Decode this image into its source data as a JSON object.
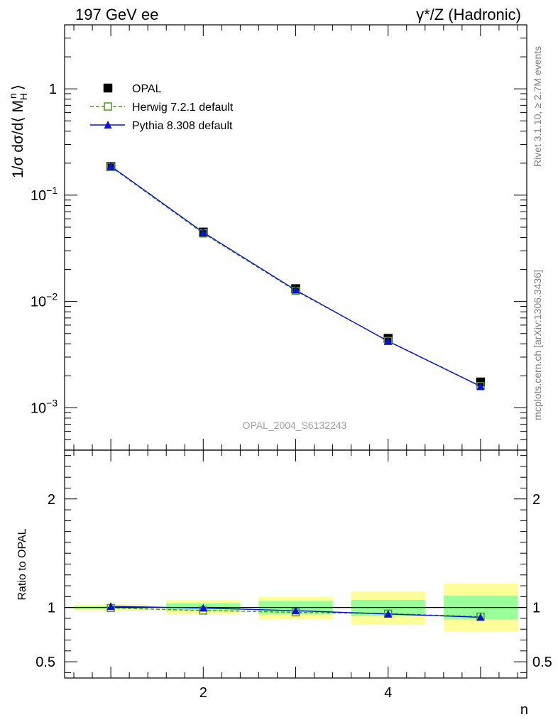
{
  "header": {
    "left_title": "197 GeV ee",
    "right_title": "γ*/Z (Hadronic)"
  },
  "side_labels": {
    "rivet": "Rivet 3.1.10, ≥ 2.7M events",
    "mcplots": "mcplots.cern.ch [arXiv:1306.3436]"
  },
  "watermark": "OPAL_2004_S6132243",
  "colors": {
    "data": "#000000",
    "herwig": "#4a9a1a",
    "pythia": "#0a10d8",
    "band_inner": "#99ff99",
    "band_outer": "#ffff99"
  },
  "chart_data": [
    {
      "type": "scatter",
      "panel": "main",
      "ylabel": "1/σ dσ/d⟨ M",
      "ylabel_sub": "H",
      "ylabel_sup": "n",
      "ylabel_close": "⟩",
      "yscale": "log",
      "xlim": [
        0.5,
        5.5
      ],
      "ylim": [
        0.0004,
        4.0
      ],
      "y_ticks": [
        {
          "value": 0.001,
          "base": "10",
          "exp": "−3"
        },
        {
          "value": 0.01,
          "base": "10",
          "exp": "−2"
        },
        {
          "value": 0.1,
          "base": "10",
          "exp": "−1"
        },
        {
          "value": 1,
          "base": "1",
          "exp": ""
        }
      ],
      "x": [
        1,
        2,
        3,
        4,
        5
      ],
      "series": [
        {
          "name": "OPAL",
          "values": [
            0.186,
            0.045,
            0.0132,
            0.0045,
            0.00175
          ],
          "marker": "square",
          "color_key": "data"
        },
        {
          "name": "Herwig 7.2.1 default",
          "values": [
            0.185,
            0.0437,
            0.0126,
            0.00425,
            0.0016
          ],
          "marker": "open-square",
          "line": "dashed",
          "color_key": "herwig"
        },
        {
          "name": "Pythia 8.308 default",
          "values": [
            0.188,
            0.0447,
            0.0128,
            0.00423,
            0.00159
          ],
          "marker": "triangle",
          "line": "solid",
          "color_key": "pythia"
        }
      ],
      "legend": "top-left"
    },
    {
      "type": "line",
      "panel": "ratio",
      "ylabel": "Ratio to OPAL",
      "xlabel": "n",
      "xlim": [
        0.5,
        5.5
      ],
      "ylim": [
        0.35,
        2.45
      ],
      "x_ticks": [
        2,
        4
      ],
      "y_ticks": [
        0.5,
        1,
        2
      ],
      "x": [
        1,
        2,
        3,
        4,
        5
      ],
      "bands": [
        {
          "x0": 0.6,
          "x1": 1.4,
          "inner": [
            0.99,
            1.01
          ],
          "outer": [
            0.97,
            1.03
          ]
        },
        {
          "x0": 1.6,
          "x1": 2.4,
          "inner": [
            0.97,
            1.04
          ],
          "outer": [
            0.94,
            1.07
          ]
        },
        {
          "x0": 2.6,
          "x1": 3.4,
          "inner": [
            0.94,
            1.06
          ],
          "outer": [
            0.89,
            1.1
          ]
        },
        {
          "x0": 3.6,
          "x1": 4.4,
          "inner": [
            0.92,
            1.07
          ],
          "outer": [
            0.84,
            1.15
          ]
        },
        {
          "x0": 4.6,
          "x1": 5.4,
          "inner": [
            0.89,
            1.11
          ],
          "outer": [
            0.78,
            1.22
          ]
        }
      ],
      "series": [
        {
          "name": "Herwig 7.2.1 default",
          "values": [
            0.995,
            0.972,
            0.955,
            0.943,
            0.915
          ],
          "color_key": "herwig"
        },
        {
          "name": "Pythia 8.308 default",
          "values": [
            1.01,
            0.995,
            0.97,
            0.94,
            0.91
          ],
          "color_key": "pythia"
        }
      ]
    }
  ]
}
